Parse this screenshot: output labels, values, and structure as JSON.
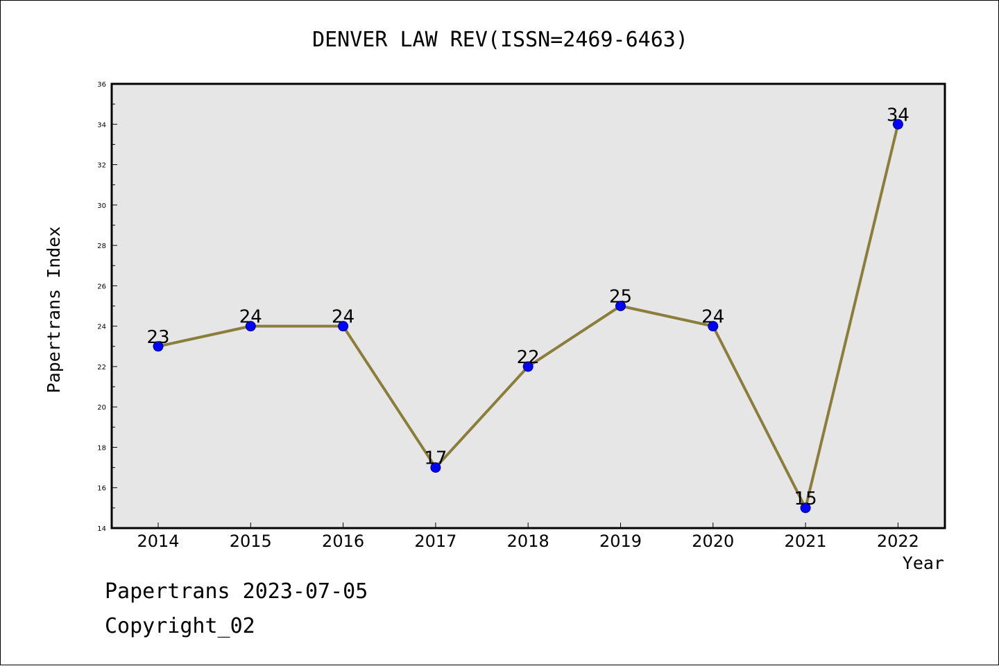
{
  "chart_data": {
    "type": "line",
    "title": "DENVER LAW REV(ISSN=2469-6463)",
    "xlabel": "Year",
    "ylabel": "Papertrans Index",
    "categories": [
      "2014",
      "2015",
      "2016",
      "2017",
      "2018",
      "2019",
      "2020",
      "2021",
      "2022"
    ],
    "series": [
      {
        "values": [
          23,
          24,
          24,
          17,
          22,
          25,
          24,
          15,
          34
        ]
      }
    ],
    "data_labels": [
      "23",
      "24",
      "24",
      "17",
      "22",
      "25",
      "24",
      "15",
      "34"
    ],
    "ylim": [
      14,
      36
    ],
    "yticks": [
      "14",
      "16",
      "18",
      "20",
      "22",
      "24",
      "26",
      "28",
      "30",
      "32",
      "34",
      "36"
    ],
    "grid": false,
    "legend": "none",
    "colors": {
      "plot_background": "#e6e6e6",
      "line": "#8b7d3a",
      "marker_fill": "#0000ff",
      "marker_edge": "#000080"
    }
  },
  "footer": {
    "line1": "Papertrans 2023-07-05",
    "line2": "Copyright_02"
  }
}
